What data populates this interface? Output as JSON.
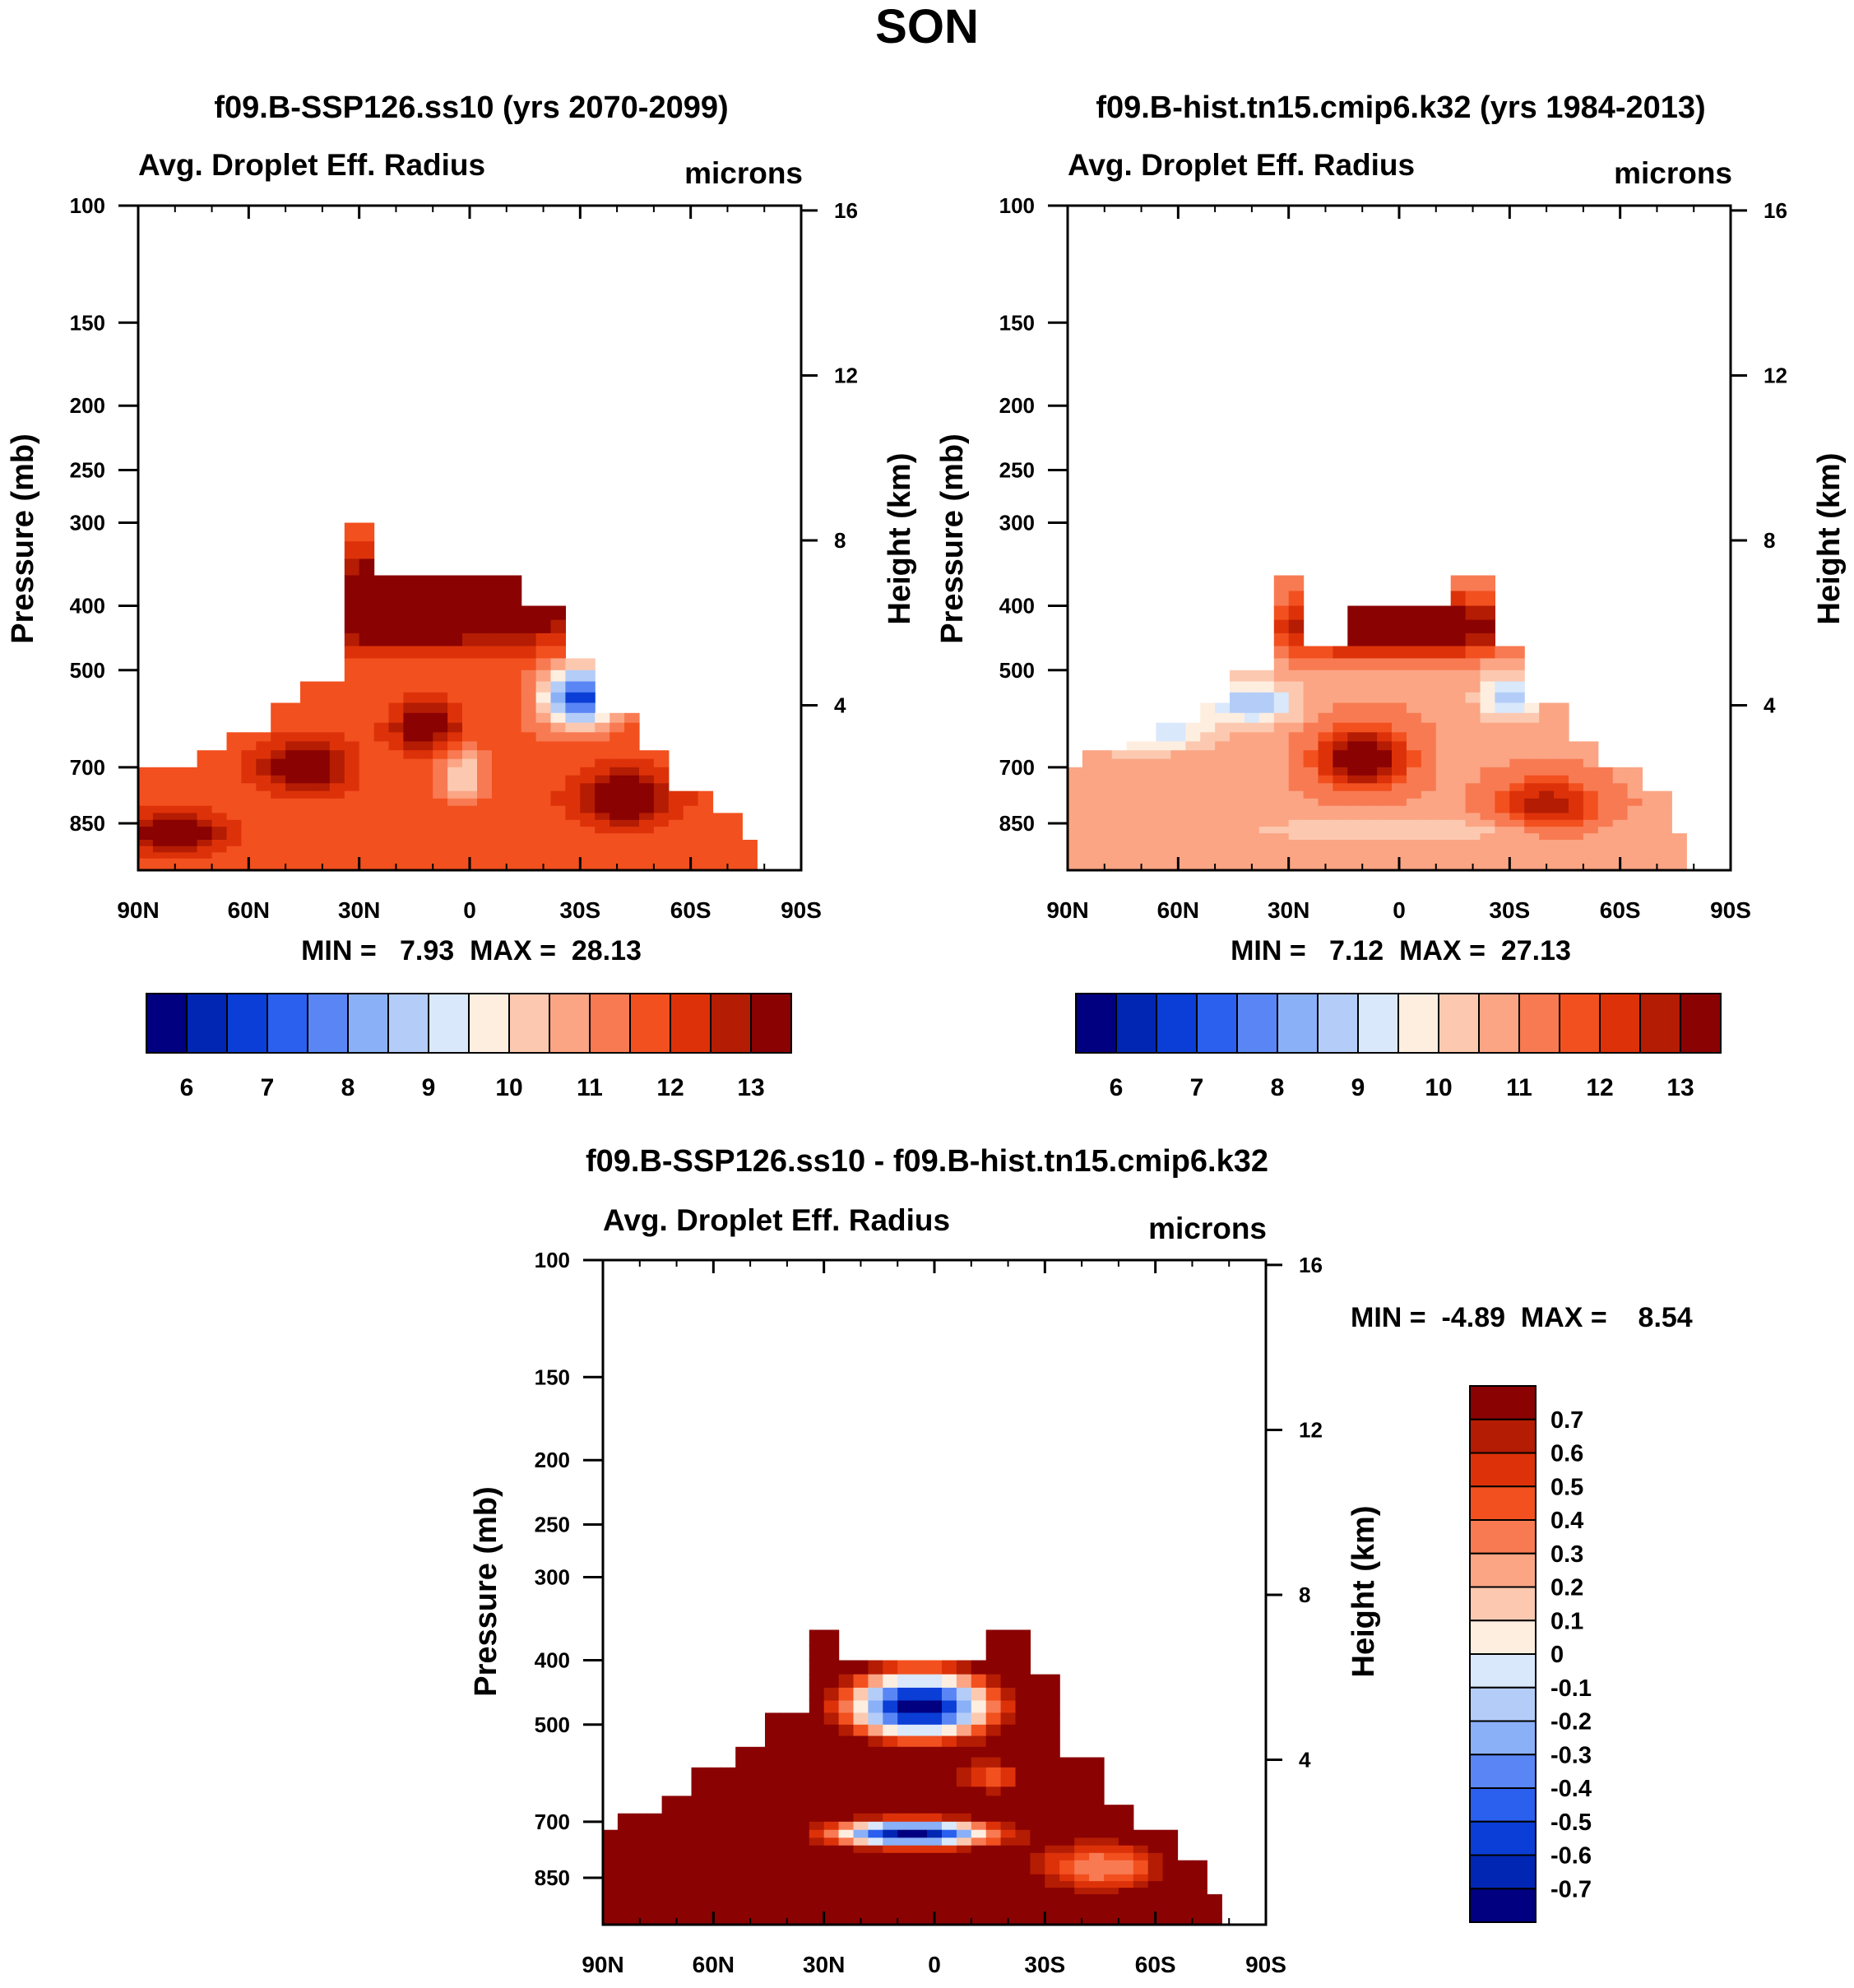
{
  "page_title": "SON",
  "colors": {
    "fill": [
      "#000080",
      "#0026b3",
      "#0a3ed6",
      "#2b5fee",
      "#5a86f5",
      "#8ab0f7",
      "#b4cdf8",
      "#d9e8fb",
      "#fdeee0",
      "#fcc9b0",
      "#fba585",
      "#f87a52",
      "#f2501f",
      "#dd3209",
      "#b41c03",
      "#8a0202"
    ],
    "frame": "#000000",
    "background": "#ffffff"
  },
  "chart_data": [
    {
      "id": "panel_future",
      "type": "heatmap",
      "title": "f09.B-SSP126.ss10 (yrs 2070-2099)",
      "left_label": "Avg. Droplet Eff. Radius",
      "right_label": "microns",
      "ylabel": "Pressure (mb)",
      "y2label": "Height (km)",
      "x_ticks": [
        "90N",
        "60N",
        "30N",
        "0",
        "30S",
        "60S",
        "90S"
      ],
      "x_range": [
        90,
        -90
      ],
      "y_ticks": [
        100,
        150,
        200,
        250,
        300,
        400,
        500,
        700,
        850
      ],
      "y_range": [
        100,
        1000
      ],
      "y2_ticks": [
        16,
        12,
        8,
        4
      ],
      "stats": "MIN =   7.93  MAX =  28.13",
      "colorbar": {
        "orientation": "horizontal",
        "labels": [
          "6",
          "7",
          "8",
          "9",
          "10",
          "11",
          "12",
          "13"
        ]
      },
      "field": {
        "columns": [
          {
            "lat": 90,
            "top": 700
          },
          {
            "lat": 80,
            "top": 690
          },
          {
            "lat": 70,
            "top": 660
          },
          {
            "lat": 60,
            "top": 610
          },
          {
            "lat": 50,
            "top": 560
          },
          {
            "lat": 40,
            "top": 510
          },
          {
            "lat": 30,
            "top": 290
          },
          {
            "lat": 20,
            "top": 345
          },
          {
            "lat": 10,
            "top": 345
          },
          {
            "lat": 0,
            "top": 345
          },
          {
            "lat": -10,
            "top": 350
          },
          {
            "lat": -20,
            "top": 400
          },
          {
            "lat": -30,
            "top": 470
          },
          {
            "lat": -40,
            "top": 580
          },
          {
            "lat": -50,
            "top": 660
          },
          {
            "lat": -60,
            "top": 760
          },
          {
            "lat": -70,
            "top": 820
          },
          {
            "lat": -75,
            "top": 900
          }
        ],
        "blobs": [
          {
            "lat": 80,
            "p": 880,
            "rlat": 12,
            "rp": 60,
            "value": 13.6
          },
          {
            "lat": 45,
            "p": 700,
            "rlat": 12,
            "rp": 60,
            "value": 13.3
          },
          {
            "lat": 12,
            "p": 610,
            "rlat": 9,
            "rp": 55,
            "value": 13.1
          },
          {
            "lat": -42,
            "p": 780,
            "rlat": 13,
            "rp": 75,
            "value": 13.4
          },
          {
            "lat": -30,
            "p": 550,
            "rlat": 10,
            "rp": 55,
            "value": 6.3
          },
          {
            "lat": 2,
            "p": 720,
            "rlat": 6,
            "rp": 60,
            "value": 9.4
          },
          {
            "lat": 15,
            "p": 400,
            "rlat": 45,
            "rp": 55,
            "value": 14.5
          }
        ],
        "base": 11.2
      }
    },
    {
      "id": "panel_historical",
      "type": "heatmap",
      "title": "f09.B-hist.tn15.cmip6.k32 (yrs 1984-2013)",
      "left_label": "Avg. Droplet Eff. Radius",
      "right_label": "microns",
      "ylabel": "Pressure (mb)",
      "y2label": "Height (km)",
      "x_ticks": [
        "90N",
        "60N",
        "30N",
        "0",
        "30S",
        "60S",
        "90S"
      ],
      "x_range": [
        90,
        -90
      ],
      "y_ticks": [
        100,
        150,
        200,
        250,
        300,
        400,
        500,
        700,
        850
      ],
      "y_range": [
        100,
        1000
      ],
      "y2_ticks": [
        16,
        12,
        8,
        4
      ],
      "stats": "MIN =   7.12  MAX =  27.13",
      "colorbar": {
        "orientation": "horizontal",
        "labels": [
          "6",
          "7",
          "8",
          "9",
          "10",
          "11",
          "12",
          "13"
        ]
      },
      "field": {
        "columns": [
          {
            "lat": 90,
            "top": 690
          },
          {
            "lat": 80,
            "top": 660
          },
          {
            "lat": 70,
            "top": 640
          },
          {
            "lat": 60,
            "top": 600
          },
          {
            "lat": 50,
            "top": 550
          },
          {
            "lat": 40,
            "top": 500
          },
          {
            "lat": 30,
            "top": 345
          },
          {
            "lat": 20,
            "top": 460
          },
          {
            "lat": 10,
            "top": 400
          },
          {
            "lat": 0,
            "top": 400
          },
          {
            "lat": -10,
            "top": 400
          },
          {
            "lat": -20,
            "top": 345
          },
          {
            "lat": -30,
            "top": 460
          },
          {
            "lat": -40,
            "top": 560
          },
          {
            "lat": -50,
            "top": 640
          },
          {
            "lat": -60,
            "top": 690
          },
          {
            "lat": -70,
            "top": 760
          },
          {
            "lat": -75,
            "top": 880
          }
        ],
        "blobs": [
          {
            "lat": 10,
            "p": 680,
            "rlat": 12,
            "rp": 70,
            "value": 13.2
          },
          {
            "lat": -40,
            "p": 800,
            "rlat": 14,
            "rp": 70,
            "value": 12.4
          },
          {
            "lat": 70,
            "p": 620,
            "rlat": 18,
            "rp": 40,
            "value": 8.2
          },
          {
            "lat": 40,
            "p": 560,
            "rlat": 12,
            "rp": 40,
            "value": 8.0
          },
          {
            "lat": -30,
            "p": 550,
            "rlat": 8,
            "rp": 40,
            "value": 8.0
          },
          {
            "lat": 0,
            "p": 430,
            "rlat": 30,
            "rp": 40,
            "value": 14.5
          },
          {
            "lat": 0,
            "p": 870,
            "rlat": 40,
            "rp": 40,
            "value": 9.5
          }
        ],
        "base": 10.4
      }
    },
    {
      "id": "panel_difference",
      "type": "heatmap",
      "title": "f09.B-SSP126.ss10 - f09.B-hist.tn15.cmip6.k32",
      "left_label": "Avg. Droplet Eff. Radius",
      "right_label": "microns",
      "ylabel": "Pressure (mb)",
      "y2label": "Height (km)",
      "x_ticks": [
        "90N",
        "60N",
        "30N",
        "0",
        "30S",
        "60S",
        "90S"
      ],
      "x_range": [
        90,
        -90
      ],
      "y_ticks": [
        100,
        150,
        200,
        250,
        300,
        400,
        500,
        700,
        850
      ],
      "y_range": [
        100,
        1000
      ],
      "y2_ticks": [
        16,
        12,
        8,
        4
      ],
      "stats": "MIN =  -4.89  MAX =    8.54",
      "colorbar": {
        "orientation": "vertical",
        "labels": [
          "0.7",
          "0.6",
          "0.5",
          "0.4",
          "0.3",
          "0.2",
          "0.1",
          "0",
          "-0.1",
          "-0.2",
          "-0.3",
          "-0.4",
          "-0.5",
          "-0.6",
          "-0.7"
        ]
      },
      "field": {
        "columns": [
          {
            "lat": 90,
            "top": 720
          },
          {
            "lat": 80,
            "top": 680
          },
          {
            "lat": 70,
            "top": 630
          },
          {
            "lat": 60,
            "top": 580
          },
          {
            "lat": 50,
            "top": 530
          },
          {
            "lat": 40,
            "top": 480
          },
          {
            "lat": 30,
            "top": 345
          },
          {
            "lat": 20,
            "top": 400
          },
          {
            "lat": 10,
            "top": 400
          },
          {
            "lat": 0,
            "top": 400
          },
          {
            "lat": -10,
            "top": 400
          },
          {
            "lat": -20,
            "top": 345
          },
          {
            "lat": -30,
            "top": 420
          },
          {
            "lat": -40,
            "top": 560
          },
          {
            "lat": -50,
            "top": 660
          },
          {
            "lat": -60,
            "top": 720
          },
          {
            "lat": -70,
            "top": 800
          },
          {
            "lat": -75,
            "top": 900
          }
        ],
        "blobs": [
          {
            "lat": 4,
            "p": 470,
            "rlat": 20,
            "rp": 55,
            "value": -0.9
          },
          {
            "lat": 6,
            "p": 730,
            "rlat": 22,
            "rp": 35,
            "value": -0.9
          },
          {
            "lat": -45,
            "p": 820,
            "rlat": 20,
            "rp": 80,
            "value": 0.2
          },
          {
            "lat": -15,
            "p": 600,
            "rlat": 10,
            "rp": 40,
            "value": 0.35
          }
        ],
        "base": 0.9
      }
    }
  ]
}
